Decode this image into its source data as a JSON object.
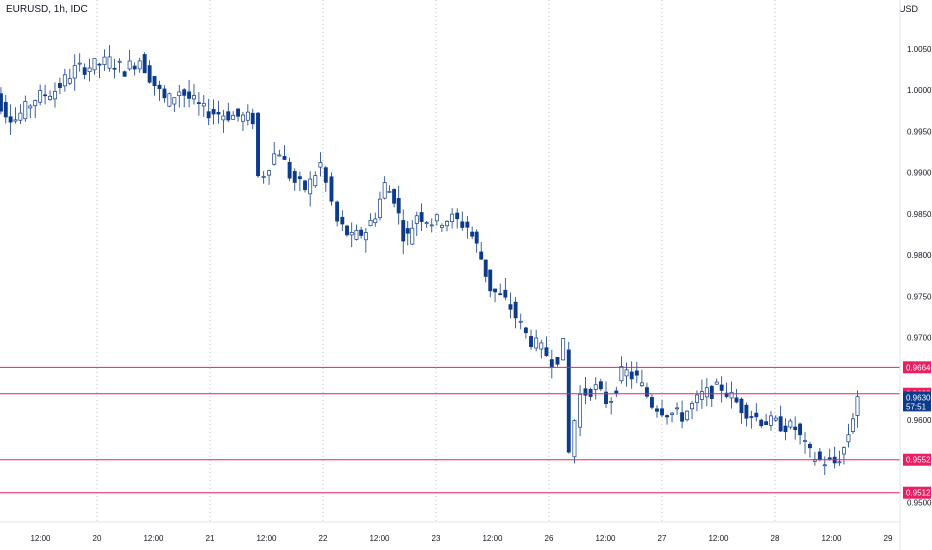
{
  "header": {
    "symbol_label": "EURUSD, 1h, IDC",
    "currency": "USD"
  },
  "colors": {
    "up": "#ffffff",
    "down": "#0d3b8c",
    "outline": "#0d3b8c",
    "level": "#e91e63",
    "grid": "#9aa0aa",
    "price_tag": "#0d3b8c"
  },
  "chart_data": {
    "type": "candlestick",
    "ylim": [
      0.9485,
      1.0085
    ],
    "y_ticks": [
      "1.0050",
      "1.0000",
      "0.9950",
      "0.9900",
      "0.9850",
      "0.9800",
      "0.9750",
      "0.9700",
      "0.9600",
      "0.9500"
    ],
    "x_ticks": [
      {
        "label": "12:00",
        "x": 0.5
      },
      {
        "label": "20",
        "x": 1
      },
      {
        "label": "12:00",
        "x": 1.5
      },
      {
        "label": "21",
        "x": 2
      },
      {
        "label": "12:00",
        "x": 2.5
      },
      {
        "label": "22",
        "x": 3
      },
      {
        "label": "12:00",
        "x": 3.5
      },
      {
        "label": "23",
        "x": 4
      },
      {
        "label": "12:00",
        "x": 4.5
      },
      {
        "label": "26",
        "x": 5
      },
      {
        "label": "12:00",
        "x": 5.5
      },
      {
        "label": "27",
        "x": 6
      },
      {
        "label": "12:00",
        "x": 6.5
      },
      {
        "label": "28",
        "x": 7
      },
      {
        "label": "12:00",
        "x": 7.5
      },
      {
        "label": "29",
        "x": 8
      }
    ],
    "day_boundaries": [
      1,
      2,
      3,
      4,
      5,
      6,
      7
    ],
    "levels": [
      {
        "label": "0.9664",
        "value": 0.9664
      },
      {
        "label": "0.9632",
        "value": 0.9632
      },
      {
        "label": "0.9552",
        "value": 0.9552
      },
      {
        "label": "0.9512",
        "value": 0.9512
      }
    ],
    "last_price": {
      "label": "0.9630",
      "value": 0.963,
      "countdown": "57:51"
    },
    "segments": [
      {
        "x0": 0.0,
        "x1": 0.3,
        "vals": [
          1.001,
          1.0,
          0.9975,
          0.9965
        ]
      },
      {
        "x0": 0.3,
        "x1": 1.0,
        "vals": [
          0.9965,
          0.999,
          1.0,
          1.0025,
          1.003
        ]
      },
      {
        "x0": 1.0,
        "x1": 1.4,
        "vals": [
          1.003,
          1.0035,
          1.0025,
          1.0038
        ]
      },
      {
        "x0": 1.4,
        "x1": 1.75,
        "vals": [
          1.0038,
          1.001,
          0.9985,
          1.0
        ]
      },
      {
        "x0": 1.75,
        "x1": 2.4,
        "vals": [
          1.0,
          0.9975,
          0.997,
          0.9965
        ]
      },
      {
        "x0": 2.4,
        "x1": 2.5,
        "vals": [
          0.9965,
          0.9895,
          0.99
        ]
      },
      {
        "x0": 2.5,
        "x1": 3.0,
        "vals": [
          0.99,
          0.993,
          0.989,
          0.988,
          0.991
        ]
      },
      {
        "x0": 3.0,
        "x1": 3.15,
        "vals": [
          0.991,
          0.984
        ]
      },
      {
        "x0": 3.15,
        "x1": 3.4,
        "vals": [
          0.984,
          0.982,
          0.983
        ]
      },
      {
        "x0": 3.4,
        "x1": 3.65,
        "vals": [
          0.983,
          0.985,
          0.9885,
          0.987
        ]
      },
      {
        "x0": 3.65,
        "x1": 3.85,
        "vals": [
          0.987,
          0.9815,
          0.985
        ]
      },
      {
        "x0": 3.85,
        "x1": 4.3,
        "vals": [
          0.985,
          0.984,
          0.9845,
          0.9835
        ]
      },
      {
        "x0": 4.3,
        "x1": 4.5,
        "vals": [
          0.9835,
          0.9805,
          0.976
        ]
      },
      {
        "x0": 4.5,
        "x1": 5.0,
        "vals": [
          0.976,
          0.974,
          0.97,
          0.968
        ]
      },
      {
        "x0": 5.0,
        "x1": 5.15,
        "vals": [
          0.968,
          0.967,
          0.969
        ]
      },
      {
        "x0": 5.15,
        "x1": 5.3,
        "vals": [
          0.969,
          0.956,
          0.96,
          0.963
        ]
      },
      {
        "x0": 5.3,
        "x1": 5.8,
        "vals": [
          0.963,
          0.964,
          0.962,
          0.966,
          0.965
        ]
      },
      {
        "x0": 5.8,
        "x1": 6.2,
        "vals": [
          0.965,
          0.962,
          0.961,
          0.9605
        ]
      },
      {
        "x0": 6.2,
        "x1": 6.9,
        "vals": [
          0.9605,
          0.963,
          0.964,
          0.9615,
          0.96
        ]
      },
      {
        "x0": 6.9,
        "x1": 7.2,
        "vals": [
          0.96,
          0.9595,
          0.959
        ]
      },
      {
        "x0": 7.2,
        "x1": 7.55,
        "vals": [
          0.959,
          0.956,
          0.955,
          0.9548
        ]
      },
      {
        "x0": 7.55,
        "x1": 7.75,
        "vals": [
          0.9548,
          0.956,
          0.959,
          0.963
        ]
      }
    ]
  }
}
